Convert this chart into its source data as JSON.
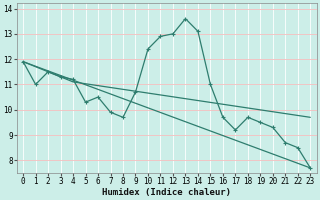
{
  "xlabel": "Humidex (Indice chaleur)",
  "bg_color": "#cceee8",
  "line_color": "#2e7d6e",
  "xlim": [
    -0.5,
    23.5
  ],
  "ylim": [
    7.5,
    14.2
  ],
  "x_ticks": [
    0,
    1,
    2,
    3,
    4,
    5,
    6,
    7,
    8,
    9,
    10,
    11,
    12,
    13,
    14,
    15,
    16,
    17,
    18,
    19,
    20,
    21,
    22,
    23
  ],
  "y_ticks": [
    8,
    9,
    10,
    11,
    12,
    13,
    14
  ],
  "series1_x": [
    0,
    1,
    2,
    3,
    4,
    5,
    6,
    7,
    8,
    9,
    10,
    11,
    12,
    13,
    14,
    15,
    16,
    17,
    18,
    19,
    20,
    21,
    22,
    23
  ],
  "series1_y": [
    11.9,
    11.0,
    11.5,
    11.3,
    11.2,
    10.3,
    10.5,
    9.9,
    9.7,
    10.7,
    12.4,
    12.9,
    13.0,
    13.6,
    13.1,
    11.0,
    9.7,
    9.2,
    9.7,
    9.5,
    9.3,
    8.7,
    8.5,
    7.7
  ],
  "trend1_x": [
    0,
    23
  ],
  "trend1_y": [
    11.9,
    7.7
  ],
  "trend2_x": [
    0,
    4,
    23
  ],
  "trend2_y": [
    11.9,
    11.1,
    9.7
  ],
  "grid_minor_color": "#ffffff",
  "grid_major_red": "#f0b0b0",
  "tick_fontsize": 5.5,
  "xlabel_fontsize": 6.5
}
